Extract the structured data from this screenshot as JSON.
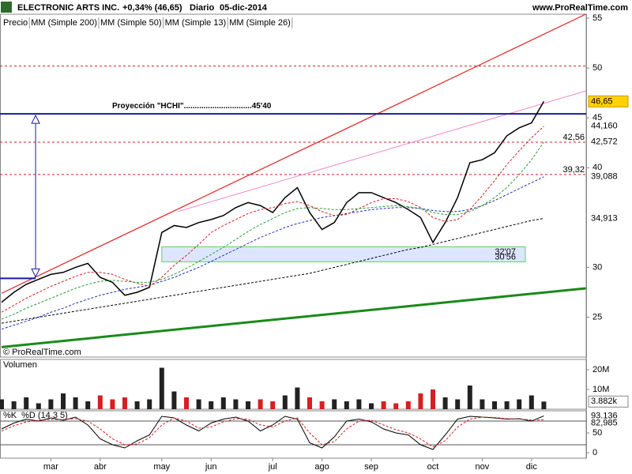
{
  "chart_data": [
    {
      "type": "line",
      "title": "ELECTRONIC ARTS INC.",
      "change": "+0,34% (46,65)",
      "period": "Diario",
      "date": "05-dic-2014",
      "source": "www.ProRealTime.com",
      "watermark": "© ProRealTime.com",
      "categories": [
        null,
        null,
        null,
        null,
        "mar",
        null,
        null,
        null,
        "abr",
        null,
        null,
        null,
        null,
        "may",
        null,
        null,
        null,
        "jun",
        null,
        null,
        null,
        null,
        "jul",
        null,
        null,
        null,
        "ago",
        null,
        null,
        null,
        "sep",
        null,
        null,
        null,
        null,
        "oct",
        null,
        null,
        null,
        "nov",
        null,
        null,
        null,
        "dic",
        null
      ],
      "series": [
        {
          "name": "Precio",
          "color": "#000000",
          "values": [
            26.5,
            27.5,
            28.3,
            28.8,
            29.3,
            29.5,
            30.0,
            30.4,
            29.0,
            28.5,
            27.2,
            27.5,
            28.0,
            33.5,
            34.2,
            34.0,
            34.5,
            34.8,
            35.2,
            36.0,
            36.5,
            36.2,
            35.5,
            37.0,
            38.0,
            35.5,
            33.8,
            34.5,
            36.5,
            37.5,
            37.5,
            37.0,
            36.5,
            35.8,
            35.0,
            32.5,
            34.5,
            37.0,
            40.5,
            40.8,
            41.5,
            43.2,
            44.0,
            44.5,
            46.65
          ]
        },
        {
          "name": "MM (Simple 200)",
          "color": "#000000",
          "dash": true,
          "values": [
            24.4,
            24.6,
            24.8,
            25.0,
            25.2,
            25.4,
            25.6,
            25.8,
            26.0,
            26.2,
            26.4,
            26.6,
            26.8,
            27.0,
            27.2,
            27.4,
            27.6,
            27.8,
            28.0,
            28.2,
            28.4,
            28.6,
            28.8,
            29.0,
            29.2,
            29.4,
            29.7,
            30.0,
            30.3,
            30.6,
            30.9,
            31.2,
            31.5,
            31.8,
            32.0,
            32.3,
            32.6,
            32.9,
            33.2,
            33.5,
            33.8,
            34.1,
            34.4,
            34.7,
            34.913
          ]
        },
        {
          "name": "MM (Simple 50)",
          "color": "#1f2fbf",
          "dash": true,
          "values": [
            23.8,
            24.2,
            24.6,
            25.0,
            25.5,
            25.9,
            26.4,
            26.8,
            27.2,
            27.5,
            27.8,
            28.0,
            28.2,
            28.6,
            29.0,
            29.5,
            30.0,
            30.6,
            31.2,
            31.8,
            32.4,
            33.0,
            33.5,
            34.0,
            34.4,
            34.7,
            35.0,
            35.2,
            35.4,
            35.6,
            35.8,
            35.9,
            36.0,
            36.0,
            35.9,
            35.7,
            35.6,
            35.6,
            35.8,
            36.2,
            36.7,
            37.3,
            37.9,
            38.5,
            39.088
          ]
        },
        {
          "name": "MM (Simple 13)",
          "color": "#d42020",
          "dash": true,
          "values": [
            25.5,
            26.2,
            26.9,
            27.5,
            28.1,
            28.6,
            29.1,
            29.5,
            29.5,
            29.3,
            28.8,
            28.4,
            28.1,
            29.0,
            30.2,
            31.2,
            32.3,
            33.5,
            34.2,
            34.8,
            35.4,
            35.8,
            36.0,
            36.4,
            36.6,
            36.2,
            35.6,
            35.2,
            35.3,
            35.9,
            36.5,
            36.9,
            36.9,
            36.6,
            36.0,
            35.0,
            34.6,
            34.8,
            35.8,
            37.2,
            38.7,
            40.3,
            41.7,
            43.0,
            44.16
          ]
        },
        {
          "name": "MM (Simple 26)",
          "color": "#2a9a3a",
          "dash": true,
          "values": [
            24.8,
            25.3,
            25.9,
            26.4,
            26.9,
            27.4,
            27.9,
            28.3,
            28.6,
            28.7,
            28.6,
            28.5,
            28.5,
            28.8,
            29.3,
            29.9,
            30.6,
            31.3,
            32.0,
            32.8,
            33.6,
            34.3,
            34.9,
            35.5,
            35.9,
            36.0,
            35.9,
            35.8,
            35.8,
            35.9,
            36.0,
            36.1,
            36.2,
            36.1,
            35.9,
            35.5,
            35.3,
            35.3,
            35.6,
            36.2,
            37.0,
            38.0,
            39.3,
            40.8,
            42.572
          ]
        }
      ],
      "badges": [
        {
          "value": 46.65,
          "label": "46,65",
          "color": "#ffd200"
        },
        {
          "value": 44.16,
          "label": "44,160",
          "color": "#ffffff",
          "text_color": "#d42020"
        },
        {
          "value": 42.572,
          "label": "42,572",
          "color": "#ffffff",
          "text_color": "#2a9a3a"
        },
        {
          "value": 39.088,
          "label": "39,088",
          "color": "#ffffff",
          "text_color": "#1f2fbf"
        },
        {
          "value": 34.913,
          "label": "34,913",
          "color": "#ffffff",
          "text_color": "#000000"
        }
      ],
      "ylim": [
        21,
        55.4
      ],
      "yticks": [
        25,
        30,
        40,
        45,
        50,
        55
      ],
      "levels": [
        {
          "value": 50.2,
          "color": "#d42020"
        },
        {
          "value": 42.56,
          "label": "42,56",
          "color": "#d42020"
        },
        {
          "value": 39.32,
          "label": "39,32",
          "color": "#d42020"
        }
      ],
      "trendlines": [
        {
          "color": "#e02020",
          "width": 1.2,
          "x": [
            0,
            47.4
          ],
          "values": [
            27.4,
            55.4
          ]
        },
        {
          "color": "#ee88cc",
          "width": 1,
          "x": [
            14.3,
            47.4
          ],
          "values": [
            35.6,
            47.7
          ]
        },
        {
          "color": "#1a8a1a",
          "width": 3,
          "x": [
            0,
            47.4
          ],
          "values": [
            22.0,
            27.9
          ]
        }
      ],
      "zone": {
        "x": [
          13.0,
          42.5
        ],
        "values": [
          30.56,
          32.07
        ],
        "labels": [
          "30'56",
          "32'07"
        ]
      },
      "projection": {
        "label": "Proyección \"HCHI\"...............................45'40",
        "x": 2.76,
        "from": 28.9,
        "to": 45.4
      }
    },
    {
      "type": "bar",
      "title": "Volumen",
      "values": [
        5,
        4,
        6,
        3,
        5,
        8,
        6,
        4,
        7,
        5,
        6,
        4,
        5,
        21,
        9,
        6,
        5,
        4,
        6,
        5,
        4,
        5,
        4,
        7,
        11,
        6,
        4,
        5,
        4,
        5,
        3,
        4,
        3,
        4,
        8,
        10,
        6,
        5,
        12,
        5,
        4,
        4,
        5,
        7,
        3.882
      ],
      "ylim": [
        0,
        25.2
      ],
      "yticks": [
        {
          "value": 10,
          "label": "10M"
        },
        {
          "value": 20,
          "label": "20M"
        }
      ],
      "badge": {
        "value": 3.882,
        "label": "3.882k"
      }
    },
    {
      "type": "line",
      "series": [
        {
          "name": "%K",
          "color": "#000000",
          "values": [
            60,
            75,
            85,
            80,
            88,
            82,
            90,
            70,
            35,
            20,
            12,
            30,
            45,
            92,
            88,
            70,
            55,
            75,
            85,
            90,
            80,
            55,
            70,
            92,
            85,
            25,
            12,
            40,
            80,
            85,
            78,
            60,
            50,
            45,
            20,
            8,
            45,
            85,
            92,
            90,
            88,
            85,
            86,
            80,
            93.136
          ]
        },
        {
          "name": "%D (14 3 5)",
          "color": "#d42020",
          "dash": true,
          "values": [
            55,
            68,
            78,
            82,
            84,
            84,
            86,
            80,
            60,
            35,
            20,
            22,
            38,
            70,
            88,
            80,
            62,
            65,
            78,
            86,
            85,
            70,
            65,
            80,
            88,
            50,
            20,
            28,
            60,
            80,
            82,
            70,
            58,
            50,
            35,
            15,
            30,
            65,
            85,
            90,
            89,
            86,
            85,
            83,
            82.985
          ]
        }
      ],
      "badges": [
        {
          "value": 93.136,
          "label": "93,136"
        },
        {
          "value": 82.985,
          "label": "82,985"
        }
      ],
      "ylim": [
        -14,
        106
      ],
      "yticks": [
        0,
        50
      ],
      "reference_lines": [
        20,
        80
      ]
    }
  ]
}
